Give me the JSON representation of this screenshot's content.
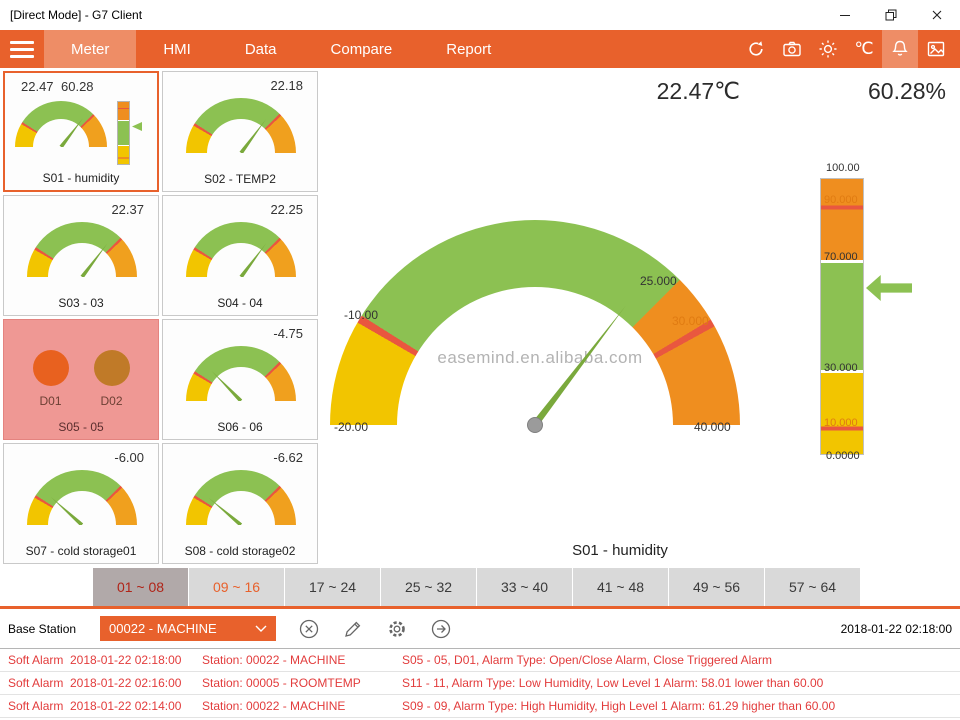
{
  "window": {
    "title": "[Direct Mode] - G7 Client"
  },
  "nav": {
    "tabs": [
      "Meter",
      "HMI",
      "Data",
      "Compare",
      "Report"
    ],
    "active_tab": "Meter",
    "unit": "℃",
    "icons": [
      "refresh-icon",
      "camera-icon",
      "brightness-icon",
      "celsius-unit",
      "alarm-bell-icon",
      "snapshot-icon"
    ]
  },
  "meter": {
    "range": {
      "min": -20,
      "max": 40
    },
    "tiles": [
      {
        "label": "S01 - humidity",
        "type": "gauge-bar",
        "value": "22.47",
        "num": 22.47,
        "value2": "60.28",
        "num2": 60.28,
        "selected": true
      },
      {
        "label": "S02 - TEMP2",
        "type": "gauge",
        "value": "22.18",
        "num": 22.18
      },
      {
        "label": "S03 - 03",
        "type": "gauge",
        "value": "22.37",
        "num": 22.37
      },
      {
        "label": "S04 - 04",
        "type": "gauge",
        "value": "22.25",
        "num": 22.25
      },
      {
        "label": "S05 - 05",
        "type": "alarm",
        "dots": [
          {
            "label": "D01",
            "color": "#e8611f"
          },
          {
            "label": "D02",
            "color": "#c07a28"
          }
        ]
      },
      {
        "label": "S06 - 06",
        "type": "gauge",
        "value": "-4.75",
        "num": -4.75
      },
      {
        "label": "S07 - cold storage01",
        "type": "gauge",
        "value": "-6.00",
        "num": -6.0
      },
      {
        "label": "S08 - cold storage02",
        "type": "gauge",
        "value": "-6.62",
        "num": -6.62
      }
    ]
  },
  "main": {
    "temp_display": "22.47℃",
    "humidity_display": "60.28%",
    "gauge_value": 22.47,
    "scale": {
      "start": "-20.00",
      "low": "-10.00",
      "mid": "25.000",
      "high": "30.000",
      "end": "40.000"
    },
    "bar_value": 60.28,
    "bar_scale": [
      "100.00",
      "90.000",
      "70.000",
      "30.000",
      "10.000",
      "0.0000"
    ],
    "selected_label": "S01 - humidity",
    "watermark": "easemind.en.alibaba.com"
  },
  "range_tabs": [
    {
      "label": "01 ~ 08",
      "state": "active"
    },
    {
      "label": "09 ~ 16",
      "state": "accent"
    },
    {
      "label": "17 ~ 24",
      "state": "normal"
    },
    {
      "label": "25 ~ 32",
      "state": "normal"
    },
    {
      "label": "33 ~ 40",
      "state": "normal"
    },
    {
      "label": "41 ~ 48",
      "state": "normal"
    },
    {
      "label": "49 ~ 56",
      "state": "normal"
    },
    {
      "label": "57 ~ 64",
      "state": "normal"
    }
  ],
  "station_bar": {
    "label": "Base Station",
    "selected_station": "00022 - MACHINE",
    "timestamp": "2018-01-22 02:18:00",
    "icons": [
      "clear-icon",
      "edit-icon",
      "settings-icon",
      "go-icon"
    ]
  },
  "alarms": [
    {
      "type": "Soft Alarm",
      "time": "2018-01-22 02:18:00",
      "station": "Station: 00022 - MACHINE",
      "detail": "S05 - 05, D01, Alarm Type: Open/Close Alarm, Close Triggered Alarm"
    },
    {
      "type": "Soft Alarm",
      "time": "2018-01-22 02:16:00",
      "station": "Station: 00005 - ROOMTEMP",
      "detail": "S11 - 11, Alarm Type: Low Humidity, Low Level 1 Alarm: 58.01 lower than 60.00"
    },
    {
      "type": "Soft Alarm",
      "time": "2018-01-22 02:14:00",
      "station": "Station: 00022 - MACHINE",
      "detail": "S09 - 09, Alarm Type: High Humidity, High Level 1 Alarm: 61.29 higher than 60.00"
    }
  ],
  "colors": {
    "accent": "#e8612c",
    "green": "#8cc152",
    "yellow": "#f2c500",
    "orange": "#ef8e1f",
    "red": "#e9573f",
    "alarm_tile": "#ef9894",
    "alarm_text": "#e23c3c"
  }
}
